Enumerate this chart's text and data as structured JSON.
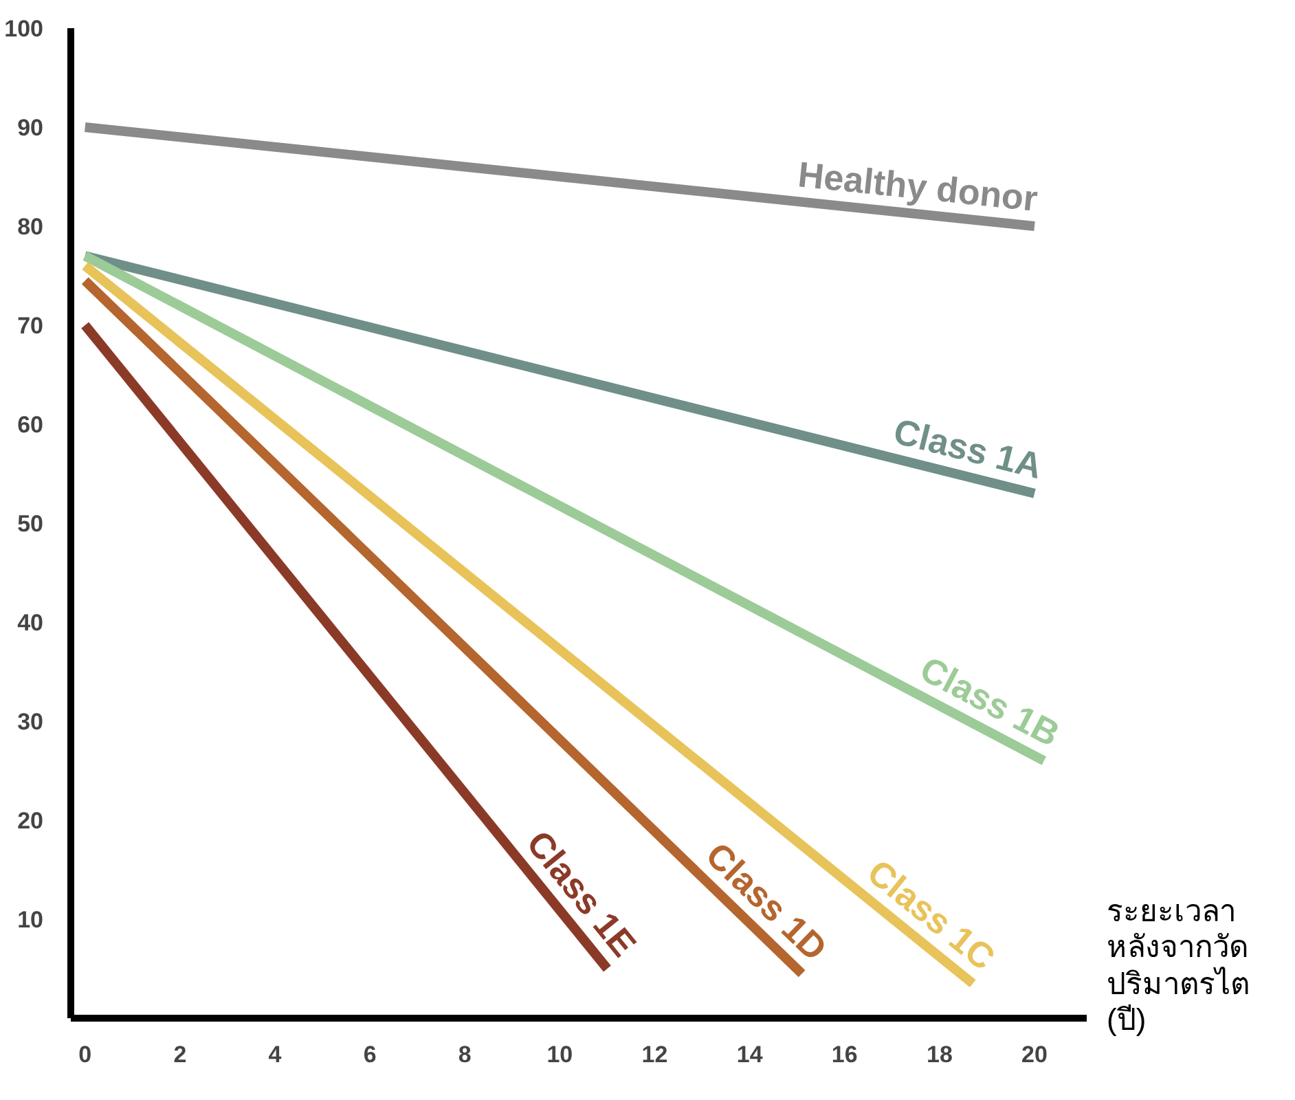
{
  "chart_data": {
    "type": "line",
    "xlabel": "ระยะเวลา หลังจากวัด ปริมาตรไต (ปี)",
    "xlim": [
      -0.3,
      21.1
    ],
    "ylim": [
      0,
      100
    ],
    "xticks": [
      0,
      2,
      4,
      6,
      8,
      10,
      12,
      14,
      16,
      18,
      20
    ],
    "yticks": [
      10,
      20,
      30,
      40,
      50,
      60,
      70,
      80,
      90,
      100
    ],
    "grid": false,
    "marker": "none",
    "line_style": "solid",
    "series": [
      {
        "name": "Healthy donor",
        "color": "#8a8a8a",
        "x": [
          0,
          20
        ],
        "values": [
          90,
          80
        ]
      },
      {
        "name": "Class 1A",
        "color": "#6f8f88",
        "x": [
          0,
          20
        ],
        "values": [
          77,
          53
        ]
      },
      {
        "name": "Class 1B",
        "color": "#9ccb98",
        "x": [
          0,
          20.2
        ],
        "values": [
          77,
          26
        ]
      },
      {
        "name": "Class 1C",
        "color": "#e8c35a",
        "x": [
          0,
          18.7
        ],
        "values": [
          76,
          3.5
        ]
      },
      {
        "name": "Class 1D",
        "color": "#b5652e",
        "x": [
          0,
          15.1
        ],
        "values": [
          74.5,
          4.5
        ]
      },
      {
        "name": "Class 1E",
        "color": "#8b3a28",
        "x": [
          0,
          11
        ],
        "values": [
          70,
          5
        ]
      }
    ]
  }
}
